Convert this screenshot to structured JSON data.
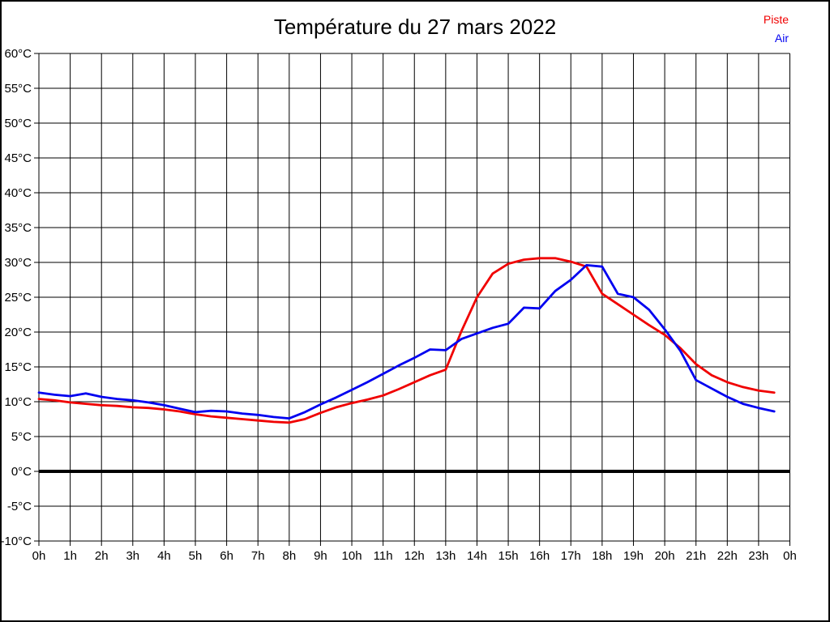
{
  "page": {
    "title": "Température du 27 mars 2022"
  },
  "legend": {
    "piste": "Piste",
    "air": "Air"
  },
  "colors": {
    "piste": "#f00000",
    "air": "#0000f0",
    "grid": "#000000",
    "zero_line": "#000000",
    "text": "#000000",
    "background": "#ffffff"
  },
  "chart_data": {
    "type": "line",
    "title": "Température du 27 mars 2022",
    "xlabel": "",
    "ylabel": "",
    "x_unit": "hours",
    "xlim": [
      0,
      24
    ],
    "ylim": [
      -10,
      60
    ],
    "grid": true,
    "x_tick_step_hours": 1,
    "y_tick_step_degrees": 5,
    "x_tick_labels": [
      "0h",
      "1h",
      "2h",
      "3h",
      "4h",
      "5h",
      "6h",
      "7h",
      "8h",
      "9h",
      "10h",
      "11h",
      "12h",
      "13h",
      "14h",
      "15h",
      "16h",
      "17h",
      "18h",
      "19h",
      "20h",
      "21h",
      "22h",
      "23h",
      "0h"
    ],
    "y_tick_labels": [
      "60°C",
      "55°C",
      "50°C",
      "45°C",
      "40°C",
      "35°C",
      "30°C",
      "25°C",
      "20°C",
      "15°C",
      "10°C",
      "5°C",
      "0°C",
      "-5°C",
      "-10°C"
    ],
    "zero_line_bold": true,
    "legend_position": "top-right",
    "x_start": 0,
    "x_step": 0.5,
    "series": [
      {
        "name": "Piste",
        "color": "#f00000",
        "values": [
          10.4,
          10.2,
          9.9,
          9.7,
          9.5,
          9.4,
          9.2,
          9.1,
          8.9,
          8.6,
          8.2,
          7.9,
          7.7,
          7.5,
          7.3,
          7.1,
          7.0,
          7.5,
          8.4,
          9.2,
          9.8,
          10.3,
          10.9,
          11.8,
          12.8,
          13.8,
          14.6,
          20.1,
          25.0,
          28.4,
          29.8,
          30.4,
          30.6,
          30.6,
          30.1,
          29.4,
          25.5,
          24.0,
          22.5,
          21.0,
          19.6,
          17.7,
          15.4,
          13.8,
          12.8,
          12.1,
          11.6,
          11.3
        ]
      },
      {
        "name": "Air",
        "color": "#0000f0",
        "values": [
          11.3,
          11.0,
          10.8,
          11.2,
          10.7,
          10.4,
          10.2,
          9.9,
          9.5,
          9.0,
          8.5,
          8.7,
          8.6,
          8.3,
          8.1,
          7.8,
          7.6,
          8.5,
          9.6,
          10.6,
          11.7,
          12.8,
          14.0,
          15.2,
          16.3,
          17.5,
          17.4,
          19.0,
          19.8,
          20.6,
          21.2,
          23.5,
          23.4,
          25.9,
          27.5,
          29.6,
          29.4,
          25.5,
          25.0,
          23.2,
          20.4,
          17.3,
          13.1,
          11.9,
          10.7,
          9.7,
          9.1,
          8.6
        ]
      }
    ]
  }
}
